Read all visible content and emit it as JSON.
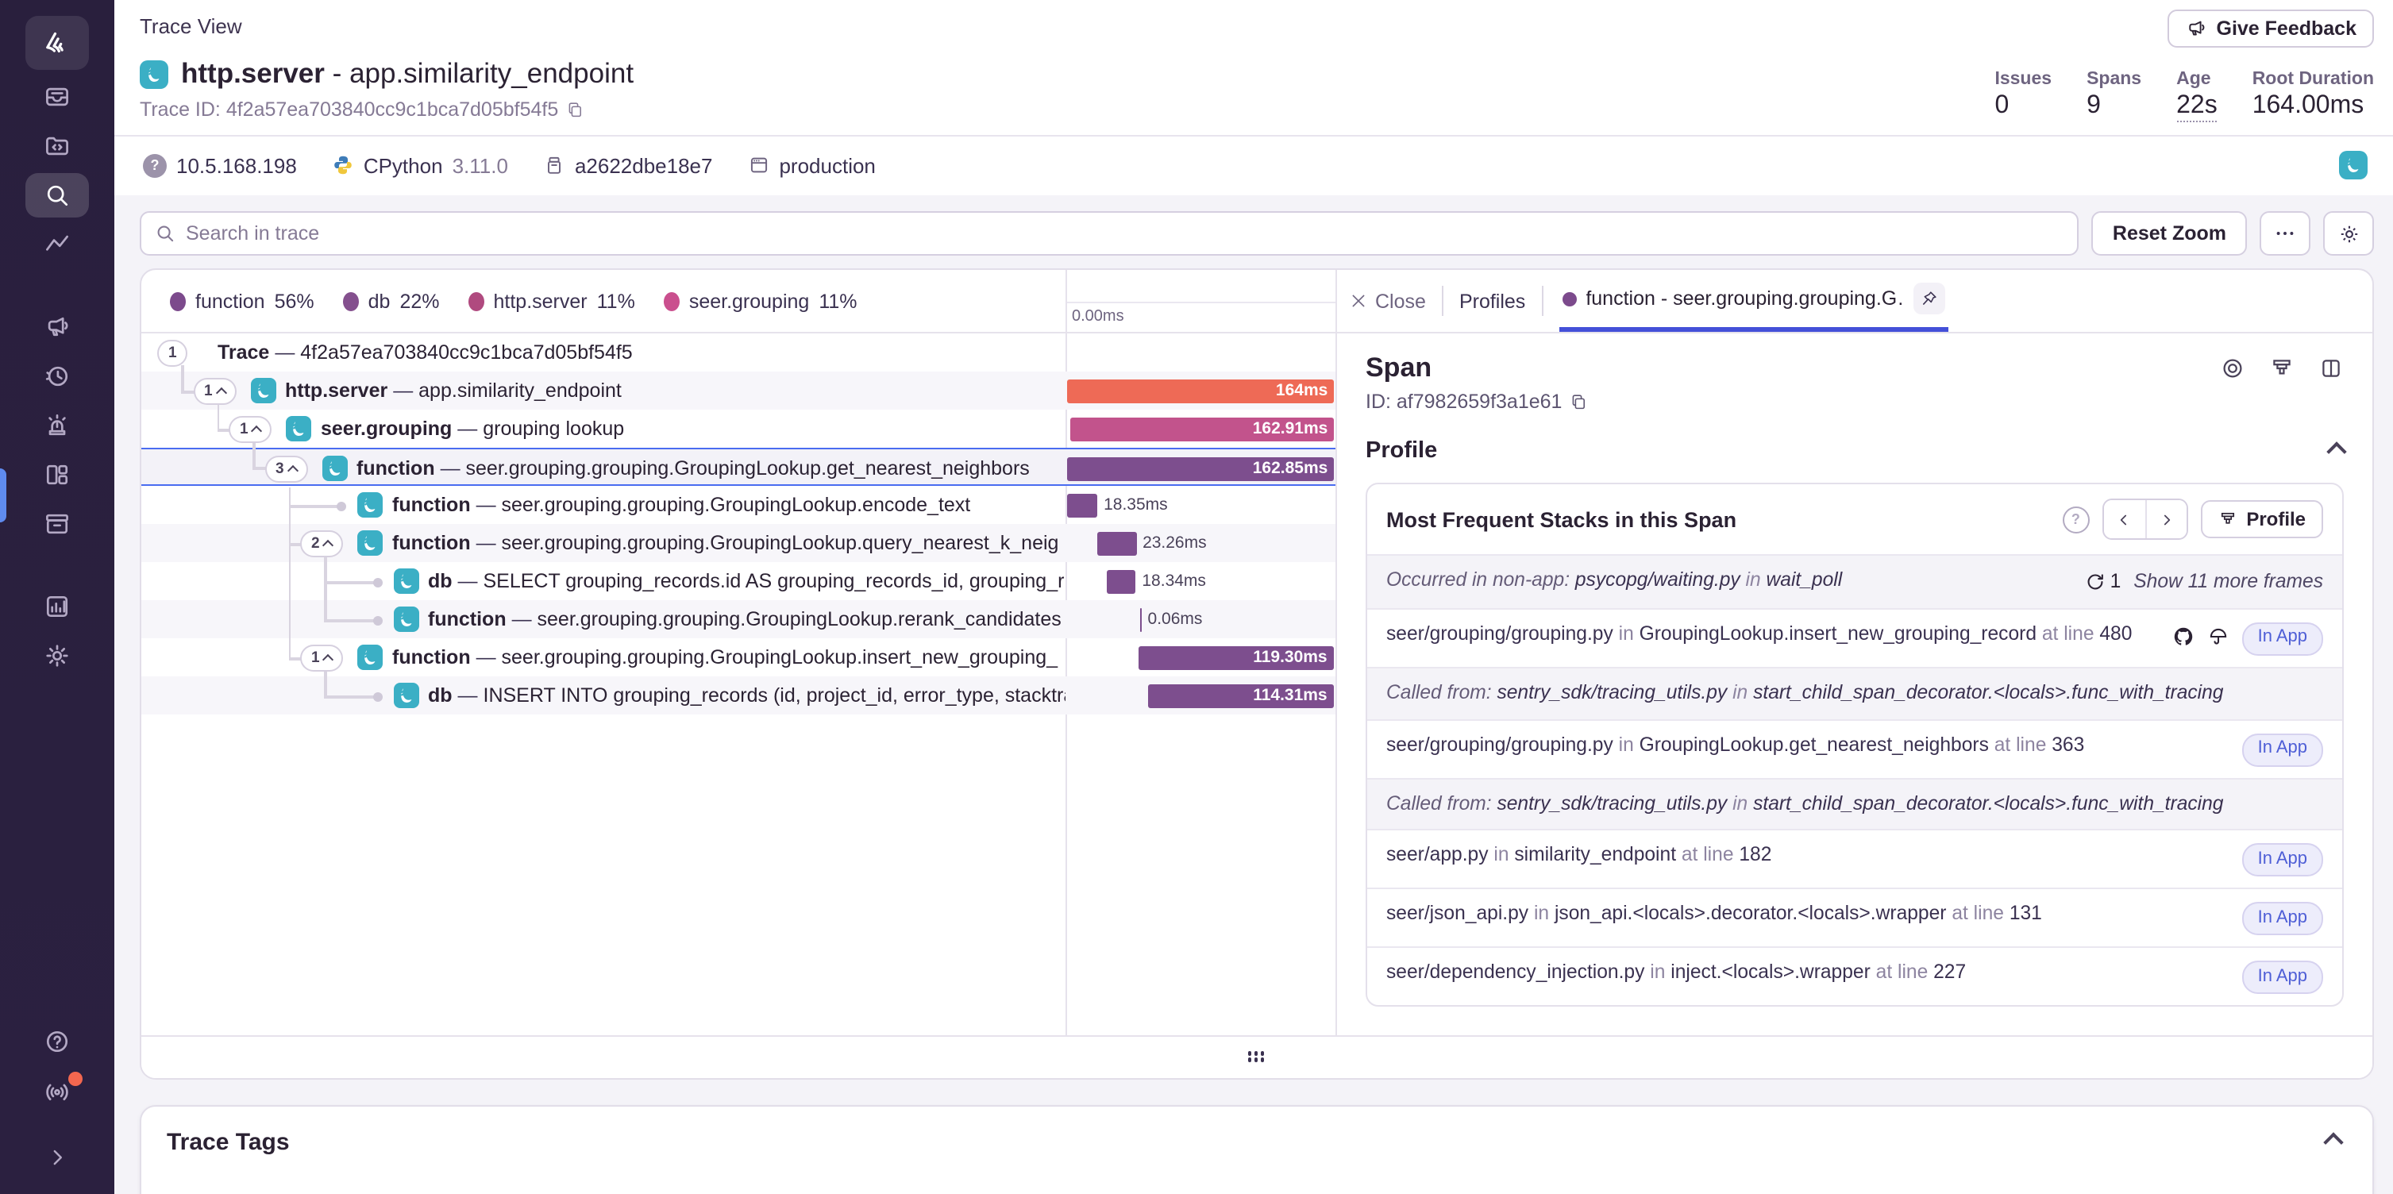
{
  "colors": {
    "accent_blue": "#4450d8",
    "select_blue": "#4a6cf0",
    "teal": "#3bafc5",
    "bar_http": "#ee6a56",
    "bar_seer": "#c2538c",
    "bar_fn": "#7d4e8e",
    "dot_function": "#7c4a8c",
    "dot_db": "#84508e",
    "dot_http": "#b04a7f",
    "dot_seer": "#ca4f8e"
  },
  "sidebar": {
    "top": [
      {
        "icon": "sentry-logo",
        "style": "logo"
      },
      {
        "icon": "issues-inbox-icon"
      },
      {
        "icon": "projects-folder-icon"
      },
      {
        "icon": "search-icon",
        "active": true
      },
      {
        "icon": "metrics-zigzag-icon"
      }
    ],
    "mid": [
      {
        "icon": "feedback-megaphone-icon"
      },
      {
        "icon": "replays-clock-icon"
      },
      {
        "icon": "alerts-siren-icon"
      },
      {
        "icon": "dashboards-grid-icon"
      },
      {
        "icon": "releases-archive-icon"
      }
    ],
    "low": [
      {
        "icon": "stats-chart-icon"
      },
      {
        "icon": "settings-gear-icon"
      }
    ],
    "bottom": [
      {
        "icon": "help-question-icon"
      },
      {
        "icon": "whats-new-broadcast-icon",
        "badge": true
      }
    ]
  },
  "header": {
    "page_title": "Trace View",
    "root_op": "http.server",
    "separator": "-",
    "root_name": "app.similarity_endpoint",
    "trace_id": "Trace ID: 4f2a57ea703840cc9c1bca7d05bf54f5",
    "feedback_label": "Give Feedback",
    "stats": [
      {
        "label": "Issues",
        "value": "0"
      },
      {
        "label": "Spans",
        "value": "9"
      },
      {
        "label": "Age",
        "value": "22s",
        "dotted": true
      },
      {
        "label": "Root Duration",
        "value": "164.00ms"
      }
    ]
  },
  "meta": {
    "ip": "10.5.168.198",
    "runtime": "CPython",
    "runtime_version": "3.11.0",
    "release": "a2622dbe18e7",
    "environment": "production"
  },
  "toolbar": {
    "search_placeholder": "Search in trace",
    "reset_zoom": "Reset Zoom"
  },
  "legend": {
    "items": [
      {
        "label": "function",
        "pct": "56%",
        "color": "#7c4a8c"
      },
      {
        "label": "db",
        "pct": "22%",
        "color": "#84508e"
      },
      {
        "label": "http.server",
        "pct": "11%",
        "color": "#b04a7f"
      },
      {
        "label": "seer.grouping",
        "pct": "11%",
        "color": "#ca4f8e"
      }
    ]
  },
  "waterfall": {
    "origin_label": "0.00ms"
  },
  "tree": {
    "separator": "—",
    "rows": [
      {
        "count": "1",
        "expandable": false,
        "level": 0,
        "op": "Trace",
        "desc": "4f2a57ea703840cc9c1bca7d05bf54f5",
        "icon": false,
        "bar": null
      },
      {
        "count": "1",
        "expandable": true,
        "level": 1,
        "op": "http.server",
        "desc": "app.similarity_endpoint",
        "icon": true,
        "bar": {
          "color": "#ee6a56",
          "start": 0.5,
          "width": 99,
          "label": "164ms",
          "inside": true
        }
      },
      {
        "count": "1",
        "expandable": true,
        "level": 2,
        "op": "seer.grouping",
        "desc": "grouping lookup",
        "icon": true,
        "bar": {
          "color": "#c2538c",
          "start": 1.5,
          "width": 98,
          "label": "162.91ms",
          "inside": true
        }
      },
      {
        "count": "3",
        "expandable": true,
        "level": 3,
        "op": "function",
        "desc": "seer.grouping.grouping.GroupingLookup.get_nearest_neighbors",
        "icon": true,
        "selected": true,
        "bar": {
          "color": "#7d4e8e",
          "start": 0.8,
          "width": 98.7,
          "label": "162.85ms",
          "inside": true
        }
      },
      {
        "leaf": true,
        "level": 4,
        "op": "function",
        "desc": "seer.grouping.grouping.GroupingLookup.encode_text",
        "icon": true,
        "bar": {
          "color": "#7d4e8e",
          "start": 0.8,
          "width": 11,
          "label": "18.35ms",
          "inside": false
        }
      },
      {
        "count": "2",
        "expandable": true,
        "level": 4,
        "op": "function",
        "desc": "seer.grouping.grouping.GroupingLookup.query_nearest_k_neig",
        "icon": true,
        "bar": {
          "color": "#7d4e8e",
          "start": 12,
          "width": 14.2,
          "label": "23.26ms",
          "inside": false
        }
      },
      {
        "leaf": true,
        "level": 5,
        "op": "db",
        "desc": "SELECT grouping_records.id AS grouping_records_id, grouping_r",
        "icon": true,
        "bar": {
          "color": "#7d4e8e",
          "start": 15,
          "width": 11,
          "label": "18.34ms",
          "inside": false
        }
      },
      {
        "leaf": true,
        "level": 5,
        "op": "function",
        "desc": "seer.grouping.grouping.GroupingLookup.rerank_candidates",
        "icon": true,
        "bar": {
          "color": "#7d4e8e",
          "start": 27.5,
          "width": 0.6,
          "label": "0.06ms",
          "inside": false
        }
      },
      {
        "count": "1",
        "expandable": true,
        "level": 4,
        "op": "function",
        "desc": "seer.grouping.grouping.GroupingLookup.insert_new_grouping_",
        "icon": true,
        "bar": {
          "color": "#7d4e8e",
          "start": 27.3,
          "width": 72,
          "label": "119.30ms",
          "inside": true
        }
      },
      {
        "leaf": true,
        "level": 5,
        "op": "db",
        "desc": "INSERT INTO grouping_records (id, project_id, error_type, stacktra",
        "icon": true,
        "bar": {
          "color": "#7d4e8e",
          "start": 30.5,
          "width": 68.8,
          "label": "114.31ms",
          "inside": true
        }
      }
    ]
  },
  "detail": {
    "tabs": {
      "close": "Close",
      "profiles": "Profiles",
      "active_label": "function - seer.grouping.grouping.G…"
    },
    "span": {
      "title": "Span",
      "id": "ID: af7982659f3a1e61"
    },
    "profile_section": "Profile",
    "stacks": {
      "title": "Most Frequent Stacks in this Span",
      "profile_button": "Profile",
      "in_label": "in",
      "at_line_label": "at line",
      "rows": [
        {
          "type": "context",
          "prefix": "Occurred in non-app: ",
          "file": "psycopg/waiting.py",
          "fn": "wait_poll",
          "recursion": "1",
          "more": "Show 11 more frames"
        },
        {
          "type": "frame",
          "file": "seer/grouping/grouping.py",
          "fn": "GroupingLookup.insert_new_grouping_record",
          "line": "480",
          "icons": [
            "github-icon",
            "seer-umbrella-icon"
          ],
          "badge": "In App"
        },
        {
          "type": "context",
          "prefix": "Called from: ",
          "file": "sentry_sdk/tracing_utils.py",
          "fn": "start_child_span_decorator.<locals>.func_with_tracing"
        },
        {
          "type": "frame",
          "file": "seer/grouping/grouping.py",
          "fn": "GroupingLookup.get_nearest_neighbors",
          "line": "363",
          "badge": "In App"
        },
        {
          "type": "context",
          "prefix": "Called from: ",
          "file": "sentry_sdk/tracing_utils.py",
          "fn": "start_child_span_decorator.<locals>.func_with_tracing"
        },
        {
          "type": "frame",
          "file": "seer/app.py",
          "fn": "similarity_endpoint",
          "line": "182",
          "badge": "In App"
        },
        {
          "type": "frame",
          "file": "seer/json_api.py",
          "fn": "json_api.<locals>.decorator.<locals>.wrapper",
          "line": "131",
          "badge": "In App"
        },
        {
          "type": "frame",
          "file": "seer/dependency_injection.py",
          "fn": "inject.<locals>.wrapper",
          "line": "227",
          "badge": "In App"
        }
      ]
    }
  },
  "tags_card": {
    "title": "Trace Tags"
  }
}
